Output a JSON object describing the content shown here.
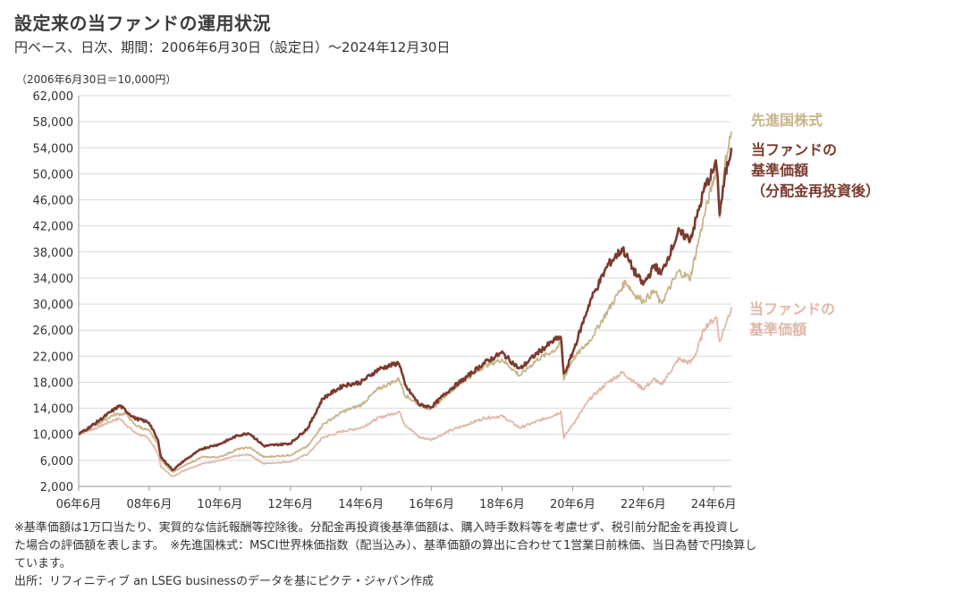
{
  "header": {
    "title": "設定来の当ファンドの運用状況",
    "subtitle": "円ベース、日次、期間：2006年6月30日（設定日）～2024年12月30日",
    "unit_note": "（2006年6月30日＝10,000円）"
  },
  "chart_data": {
    "type": "line",
    "title": "設定来の当ファンドの運用状況",
    "ylim": [
      2000,
      62000
    ],
    "yticks": [
      2000,
      6000,
      10000,
      14000,
      18000,
      22000,
      26000,
      30000,
      34000,
      38000,
      42000,
      46000,
      50000,
      54000,
      58000,
      62000
    ],
    "ytick_labels": [
      "2,000",
      "6,000",
      "10,000",
      "14,000",
      "18,000",
      "22,000",
      "26,000",
      "30,000",
      "34,000",
      "38,000",
      "42,000",
      "46,000",
      "50,000",
      "54,000",
      "58,000",
      "62,000"
    ],
    "xlim": [
      "2006-06-30",
      "2024-12-30"
    ],
    "xtick_labels": [
      "06年6月",
      "08年6月",
      "10年6月",
      "12年6月",
      "14年6月",
      "16年6月",
      "18年6月",
      "20年6月",
      "22年6月",
      "24年6月"
    ],
    "grid": "horizontal",
    "series": [
      {
        "name": "先進国株式",
        "color": "#c8b48a",
        "label_lines": [
          "先進国株式"
        ],
        "points": [
          [
            "2006-06",
            10000
          ],
          [
            "2006-12",
            11500
          ],
          [
            "2007-06",
            13000
          ],
          [
            "2007-10",
            13200
          ],
          [
            "2008-01",
            11500
          ],
          [
            "2008-06",
            10500
          ],
          [
            "2008-09",
            8500
          ],
          [
            "2008-10",
            6000
          ],
          [
            "2009-02",
            4200
          ],
          [
            "2009-06",
            5200
          ],
          [
            "2009-12",
            6500
          ],
          [
            "2010-06",
            6500
          ],
          [
            "2010-12",
            7700
          ],
          [
            "2011-04",
            8000
          ],
          [
            "2011-09",
            6500
          ],
          [
            "2012-06",
            6800
          ],
          [
            "2012-12",
            8200
          ],
          [
            "2013-05",
            11500
          ],
          [
            "2013-12",
            13500
          ],
          [
            "2014-06",
            14500
          ],
          [
            "2014-12",
            17000
          ],
          [
            "2015-07",
            18500
          ],
          [
            "2015-09",
            16000
          ],
          [
            "2016-02",
            14500
          ],
          [
            "2016-06",
            13800
          ],
          [
            "2016-12",
            16500
          ],
          [
            "2017-06",
            18500
          ],
          [
            "2017-12",
            20500
          ],
          [
            "2018-06",
            21500
          ],
          [
            "2018-12",
            19000
          ],
          [
            "2019-06",
            21500
          ],
          [
            "2019-12",
            23000
          ],
          [
            "2020-02",
            24000
          ],
          [
            "2020-03",
            18500
          ],
          [
            "2020-06",
            21500
          ],
          [
            "2020-12",
            24500
          ],
          [
            "2021-06",
            29000
          ],
          [
            "2021-12",
            33500
          ],
          [
            "2022-03",
            31500
          ],
          [
            "2022-06",
            30500
          ],
          [
            "2022-10",
            32000
          ],
          [
            "2022-12",
            30000
          ],
          [
            "2023-06",
            35000
          ],
          [
            "2023-10",
            34000
          ],
          [
            "2023-12",
            38000
          ],
          [
            "2024-03",
            44000
          ],
          [
            "2024-07",
            51000
          ],
          [
            "2024-08",
            43000
          ],
          [
            "2024-10",
            52000
          ],
          [
            "2024-12",
            56500
          ]
        ]
      },
      {
        "name": "当ファンドの基準価額（分配金再投資後）",
        "color": "#7b3b2e",
        "label_lines": [
          "当ファンドの",
          "基準価額",
          "（分配金再投資後）"
        ],
        "points": [
          [
            "2006-06",
            10000
          ],
          [
            "2006-12",
            11800
          ],
          [
            "2007-06",
            13800
          ],
          [
            "2007-08",
            14400
          ],
          [
            "2008-01",
            12500
          ],
          [
            "2008-06",
            11800
          ],
          [
            "2008-09",
            9000
          ],
          [
            "2008-10",
            6500
          ],
          [
            "2009-02",
            4500
          ],
          [
            "2009-06",
            6000
          ],
          [
            "2009-12",
            7800
          ],
          [
            "2010-06",
            8500
          ],
          [
            "2010-12",
            9800
          ],
          [
            "2011-04",
            10200
          ],
          [
            "2011-09",
            8200
          ],
          [
            "2012-06",
            8600
          ],
          [
            "2012-12",
            11000
          ],
          [
            "2013-05",
            15500
          ],
          [
            "2013-12",
            17500
          ],
          [
            "2014-06",
            18000
          ],
          [
            "2014-12",
            20000
          ],
          [
            "2015-07",
            21000
          ],
          [
            "2015-09",
            17500
          ],
          [
            "2016-02",
            14500
          ],
          [
            "2016-06",
            14200
          ],
          [
            "2016-12",
            16800
          ],
          [
            "2017-06",
            18800
          ],
          [
            "2017-12",
            21000
          ],
          [
            "2018-06",
            22500
          ],
          [
            "2018-12",
            20000
          ],
          [
            "2019-06",
            22500
          ],
          [
            "2019-12",
            24500
          ],
          [
            "2020-02",
            25000
          ],
          [
            "2020-03",
            19000
          ],
          [
            "2020-06",
            22500
          ],
          [
            "2020-12",
            30500
          ],
          [
            "2021-06",
            36000
          ],
          [
            "2021-11",
            38500
          ],
          [
            "2022-03",
            35000
          ],
          [
            "2022-06",
            33000
          ],
          [
            "2022-10",
            36000
          ],
          [
            "2022-12",
            34500
          ],
          [
            "2023-06",
            41000
          ],
          [
            "2023-10",
            40000
          ],
          [
            "2023-12",
            43000
          ],
          [
            "2024-03",
            48000
          ],
          [
            "2024-07",
            51500
          ],
          [
            "2024-08",
            44000
          ],
          [
            "2024-10",
            50000
          ],
          [
            "2024-12",
            54000
          ]
        ]
      },
      {
        "name": "当ファンドの基準価額",
        "color": "#e0b8a8",
        "label_lines": [
          "当ファンドの",
          "基準価額"
        ],
        "points": [
          [
            "2006-06",
            10000
          ],
          [
            "2006-12",
            11000
          ],
          [
            "2007-06",
            12200
          ],
          [
            "2007-08",
            12400
          ],
          [
            "2008-01",
            10300
          ],
          [
            "2008-06",
            9300
          ],
          [
            "2008-09",
            7000
          ],
          [
            "2008-10",
            5000
          ],
          [
            "2009-02",
            3500
          ],
          [
            "2009-06",
            4500
          ],
          [
            "2009-12",
            5500
          ],
          [
            "2010-06",
            6000
          ],
          [
            "2010-12",
            6700
          ],
          [
            "2011-04",
            6900
          ],
          [
            "2011-09",
            5500
          ],
          [
            "2012-06",
            5800
          ],
          [
            "2012-12",
            7000
          ],
          [
            "2013-05",
            9500
          ],
          [
            "2013-12",
            10500
          ],
          [
            "2014-06",
            11000
          ],
          [
            "2014-12",
            12500
          ],
          [
            "2015-07",
            13500
          ],
          [
            "2015-09",
            11500
          ],
          [
            "2016-02",
            9500
          ],
          [
            "2016-06",
            9200
          ],
          [
            "2016-12",
            10500
          ],
          [
            "2017-06",
            11500
          ],
          [
            "2017-12",
            12500
          ],
          [
            "2018-06",
            12800
          ],
          [
            "2018-12",
            11000
          ],
          [
            "2019-06",
            12000
          ],
          [
            "2019-12",
            13000
          ],
          [
            "2020-02",
            13500
          ],
          [
            "2020-03",
            9500
          ],
          [
            "2020-06",
            11500
          ],
          [
            "2020-12",
            15500
          ],
          [
            "2021-06",
            18000
          ],
          [
            "2021-11",
            19500
          ],
          [
            "2022-03",
            18000
          ],
          [
            "2022-06",
            17000
          ],
          [
            "2022-10",
            18500
          ],
          [
            "2022-12",
            17500
          ],
          [
            "2023-06",
            21500
          ],
          [
            "2023-10",
            21000
          ],
          [
            "2023-12",
            22500
          ],
          [
            "2024-03",
            26500
          ],
          [
            "2024-07",
            28000
          ],
          [
            "2024-08",
            24000
          ],
          [
            "2024-10",
            27000
          ],
          [
            "2024-12",
            29500
          ]
        ]
      }
    ]
  },
  "notes": {
    "line1": "※基準価額は1万口当たり、実質的な信託報酬等控除後。分配金再投資後基準価額は、購入時手数料等を考慮せず、税引前分配金を再投資し",
    "line2": "た場合の評価額を表します。　※先進国株式：MSCI世界株価指数（配当込み）、基準価額の算出に合わせて1営業日前株価、当日為替で円換算し",
    "line3": "ています。",
    "source": "出所：リフィニティブ an LSEG businessのデータを基にピクテ・ジャパン作成"
  }
}
